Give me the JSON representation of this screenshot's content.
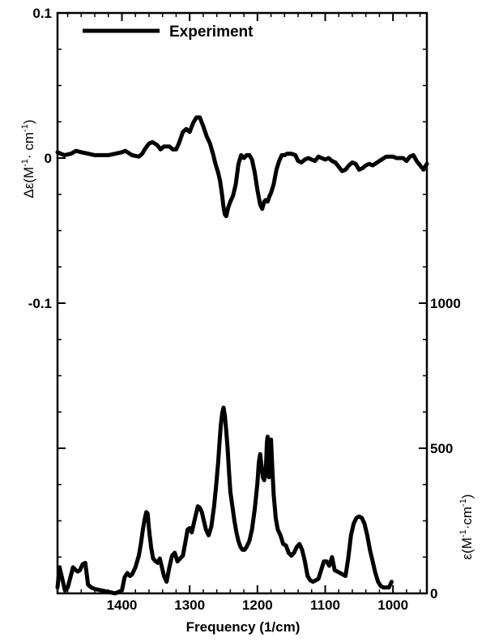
{
  "chart_data": {
    "type": "line",
    "xlabel": "Frequency (1/cm)",
    "ylabel_left_prefix": "Δε(M",
    "ylabel_left_sup1": "-1",
    "ylabel_left_mid": "· cm",
    "ylabel_left_sup2": "-1",
    "ylabel_left_suffix": ")",
    "ylabel_right_prefix": "ε(M",
    "ylabel_right_sup1": "-1",
    "ylabel_right_mid": "·cm",
    "ylabel_right_sup2": "-1",
    "ylabel_right_suffix": ")",
    "xlim": [
      1495,
      950
    ],
    "ylim_left": [
      -0.3,
      0.1
    ],
    "ylim_right": [
      0,
      2000
    ],
    "x_ticks": [
      1400,
      1300,
      1200,
      1100,
      1000
    ],
    "x_tick_labels": [
      "1400",
      "1300",
      "1200",
      "1100",
      "1000"
    ],
    "left_ticks": [
      0.1,
      0,
      -0.1,
      -0.2
    ],
    "left_tick_labels": [
      "0.1",
      "0",
      "-0.1",
      ""
    ],
    "right_ticks": [
      1000,
      500,
      0
    ],
    "right_tick_labels": [
      "1000",
      "500",
      "0"
    ],
    "legend": {
      "position": "top-left",
      "entries": [
        "Experiment"
      ]
    },
    "series": [
      {
        "name": "Experiment",
        "axis": "left",
        "x": [
          1495,
          1485,
          1475,
          1468,
          1460,
          1450,
          1440,
          1420,
          1400,
          1395,
          1385,
          1375,
          1370,
          1365,
          1360,
          1355,
          1348,
          1343,
          1338,
          1330,
          1325,
          1320,
          1316,
          1310,
          1305,
          1300,
          1295,
          1290,
          1285,
          1280,
          1275,
          1270,
          1265,
          1262,
          1258,
          1255,
          1252,
          1250,
          1248,
          1246,
          1243,
          1240,
          1236,
          1232,
          1228,
          1224,
          1220,
          1216,
          1212,
          1208,
          1204,
          1200,
          1196,
          1193,
          1190,
          1188,
          1185,
          1182,
          1180,
          1176,
          1172,
          1168,
          1164,
          1160,
          1156,
          1150,
          1144,
          1140,
          1135,
          1130,
          1125,
          1120,
          1115,
          1110,
          1105,
          1100,
          1095,
          1090,
          1085,
          1080,
          1075,
          1070,
          1065,
          1060,
          1055,
          1050,
          1045,
          1040,
          1035,
          1030,
          1020,
          1010,
          1000,
          995,
          990,
          985,
          980,
          975,
          970,
          965,
          960,
          955,
          950
        ],
        "y": [
          0.004,
          0.002,
          0.003,
          0.005,
          0.004,
          0.003,
          0.002,
          0.002,
          0.004,
          0.005,
          0.002,
          0.001,
          0.003,
          0.007,
          0.01,
          0.011,
          0.009,
          0.006,
          0.008,
          0.008,
          0.006,
          0.006,
          0.01,
          0.018,
          0.02,
          0.018,
          0.024,
          0.028,
          0.028,
          0.022,
          0.015,
          0.01,
          0.002,
          -0.004,
          -0.01,
          -0.016,
          -0.026,
          -0.034,
          -0.039,
          -0.04,
          -0.034,
          -0.03,
          -0.026,
          -0.018,
          -0.004,
          0.002,
          0.0,
          0.002,
          0.002,
          -0.001,
          -0.01,
          -0.022,
          -0.032,
          -0.035,
          -0.03,
          -0.029,
          -0.03,
          -0.026,
          -0.024,
          -0.018,
          -0.008,
          -0.002,
          0.002,
          0.002,
          0.003,
          0.003,
          0.002,
          -0.002,
          -0.003,
          -0.001,
          0.0,
          -0.001,
          -0.002,
          0.001,
          0.0,
          -0.001,
          0.0,
          -0.002,
          -0.003,
          -0.006,
          -0.009,
          -0.008,
          -0.005,
          -0.003,
          -0.004,
          -0.008,
          -0.007,
          -0.005,
          -0.004,
          -0.005,
          -0.002,
          0.001,
          0.001,
          0.0,
          0.0,
          0.0,
          -0.002,
          0.001,
          0.002,
          -0.002,
          -0.005,
          -0.008,
          -0.004
        ]
      },
      {
        "name": "",
        "axis": "right",
        "x": [
          1495,
          1492,
          1488,
          1484,
          1480,
          1476,
          1472,
          1468,
          1465,
          1462,
          1458,
          1454,
          1450,
          1445,
          1440,
          1430,
          1420,
          1410,
          1400,
          1396,
          1392,
          1388,
          1385,
          1380,
          1375,
          1372,
          1369,
          1366,
          1364,
          1362,
          1360,
          1357,
          1354,
          1350,
          1347,
          1344,
          1341,
          1338,
          1334,
          1330,
          1326,
          1322,
          1318,
          1314,
          1310,
          1306,
          1303,
          1300,
          1297,
          1294,
          1291,
          1288,
          1285,
          1282,
          1279,
          1276,
          1272,
          1268,
          1264,
          1261,
          1258,
          1256,
          1254,
          1252,
          1250,
          1248,
          1246,
          1244,
          1242,
          1240,
          1237,
          1234,
          1231,
          1228,
          1225,
          1222,
          1219,
          1216,
          1212,
          1208,
          1204,
          1200,
          1198,
          1196,
          1194,
          1192,
          1190,
          1188,
          1187,
          1186,
          1185,
          1184,
          1183,
          1182,
          1180,
          1178,
          1176,
          1173,
          1170,
          1166,
          1162,
          1158,
          1154,
          1150,
          1146,
          1142,
          1138,
          1134,
          1130,
          1126,
          1122,
          1118,
          1114,
          1110,
          1106,
          1102,
          1098,
          1094,
          1090,
          1086,
          1082,
          1078,
          1074,
          1070,
          1066,
          1062,
          1058,
          1054,
          1050,
          1046,
          1042,
          1038,
          1034,
          1030,
          1026,
          1022,
          1018,
          1014,
          1010,
          1006,
          1002
        ],
        "y": [
          20,
          90,
          50,
          10,
          20,
          55,
          90,
          80,
          75,
          80,
          100,
          105,
          30,
          20,
          15,
          10,
          5,
          0,
          10,
          55,
          70,
          60,
          65,
          90,
          130,
          170,
          220,
          260,
          280,
          275,
          220,
          160,
          120,
          110,
          105,
          120,
          90,
          60,
          40,
          90,
          130,
          140,
          110,
          120,
          130,
          180,
          220,
          225,
          210,
          240,
          270,
          300,
          295,
          280,
          250,
          220,
          200,
          230,
          300,
          370,
          450,
          520,
          580,
          620,
          640,
          610,
          560,
          500,
          420,
          350,
          300,
          250,
          210,
          180,
          160,
          150,
          150,
          160,
          180,
          220,
          290,
          380,
          450,
          480,
          440,
          400,
          390,
          420,
          460,
          520,
          540,
          480,
          400,
          470,
          530,
          430,
          340,
          260,
          220,
          200,
          170,
          165,
          140,
          130,
          140,
          160,
          170,
          150,
          110,
          60,
          45,
          40,
          45,
          50,
          80,
          110,
          110,
          95,
          125,
          80,
          75,
          70,
          65,
          60,
          120,
          200,
          240,
          260,
          265,
          260,
          240,
          200,
          150,
          110,
          70,
          40,
          25,
          20,
          20,
          20,
          40
        ]
      }
    ]
  }
}
